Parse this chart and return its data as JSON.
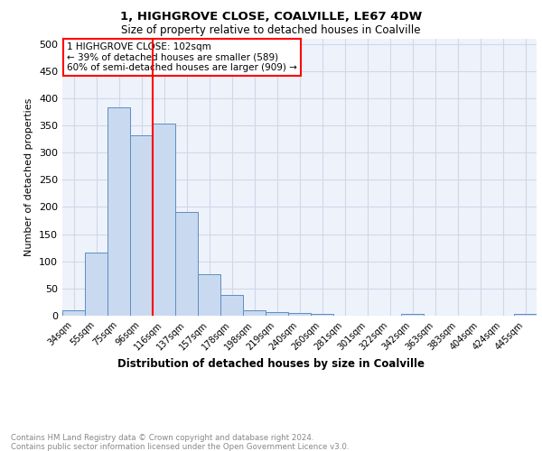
{
  "title1": "1, HIGHGROVE CLOSE, COALVILLE, LE67 4DW",
  "title2": "Size of property relative to detached houses in Coalville",
  "xlabel": "Distribution of detached houses by size in Coalville",
  "ylabel": "Number of detached properties",
  "bin_labels": [
    "34sqm",
    "55sqm",
    "75sqm",
    "96sqm",
    "116sqm",
    "137sqm",
    "157sqm",
    "178sqm",
    "198sqm",
    "219sqm",
    "240sqm",
    "260sqm",
    "281sqm",
    "301sqm",
    "322sqm",
    "342sqm",
    "363sqm",
    "383sqm",
    "404sqm",
    "424sqm",
    "445sqm"
  ],
  "bar_values": [
    10,
    116,
    383,
    332,
    353,
    190,
    76,
    38,
    10,
    6,
    5,
    4,
    0,
    0,
    0,
    4,
    0,
    0,
    0,
    0,
    4
  ],
  "bar_color": "#c9d9f0",
  "bar_edge_color": "#5a8fc3",
  "annotation_text": "1 HIGHGROVE CLOSE: 102sqm\n← 39% of detached houses are smaller (589)\n60% of semi-detached houses are larger (909) →",
  "vline_x": 3.5,
  "vline_color": "red",
  "annotation_box_color": "white",
  "annotation_box_edge_color": "red",
  "footer_text": "Contains HM Land Registry data © Crown copyright and database right 2024.\nContains public sector information licensed under the Open Government Licence v3.0.",
  "ylim": [
    0,
    510
  ],
  "yticks": [
    0,
    50,
    100,
    150,
    200,
    250,
    300,
    350,
    400,
    450,
    500
  ],
  "grid_color": "#d0d8e8",
  "bg_color": "#eef2fa"
}
